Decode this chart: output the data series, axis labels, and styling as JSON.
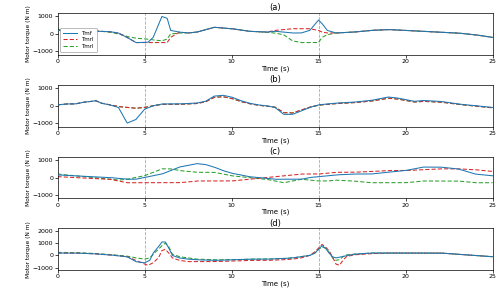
{
  "title_a": "(a)",
  "title_b": "(b)",
  "title_c": "(c)",
  "title_d": "(d)",
  "xlabel": "Time (s)",
  "ylabel": "Motor torque (N m)",
  "xlim": [
    0,
    25
  ],
  "xticks": [
    0,
    5,
    10,
    15,
    20,
    25
  ],
  "ylim_abc": [
    -1200,
    1200
  ],
  "yticks_abc": [
    -1000,
    0,
    1000
  ],
  "ylim_d": [
    -1200,
    2200
  ],
  "yticks_d": [
    -1000,
    0,
    1000,
    2000
  ],
  "color_tmf": "#1f77b4",
  "color_tmrl": "#d62728",
  "color_tmrl2": "#2ca02c",
  "legend_labels": [
    "Tmf",
    "Tmrl",
    "Tmrl"
  ],
  "vline_color": "#aaaaaa",
  "vlines": [
    5,
    15
  ]
}
